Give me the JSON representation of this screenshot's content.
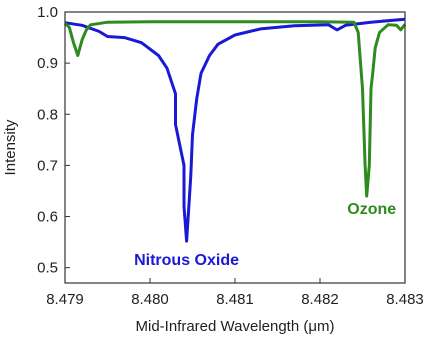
{
  "chart_data": {
    "type": "line",
    "xlabel": "Mid-Infrared Wavelength (μm)",
    "ylabel": "Intensity",
    "xlim": [
      8.479,
      8.483
    ],
    "ylim": [
      0.47,
      1.0
    ],
    "xticks": [
      "8.479",
      "8.480",
      "8.481",
      "8.482",
      "8.483"
    ],
    "yticks": [
      "0.5",
      "0.6",
      "0.7",
      "0.8",
      "0.9",
      "1.0"
    ],
    "grid": false,
    "series": [
      {
        "name": "Nitrous Oxide",
        "color": "#1a1ad6",
        "label_position": "below-center",
        "points": [
          [
            8.479,
            0.979
          ],
          [
            8.4792,
            0.974
          ],
          [
            8.4794,
            0.962
          ],
          [
            8.4795,
            0.952
          ],
          [
            8.4797,
            0.95
          ],
          [
            8.4799,
            0.94
          ],
          [
            8.4801,
            0.915
          ],
          [
            8.4802,
            0.89
          ],
          [
            8.4803,
            0.84
          ],
          [
            8.4803,
            0.78
          ],
          [
            8.4804,
            0.7
          ],
          [
            8.4804,
            0.62
          ],
          [
            8.48043,
            0.552
          ],
          [
            8.48045,
            0.6
          ],
          [
            8.48048,
            0.68
          ],
          [
            8.4805,
            0.76
          ],
          [
            8.48055,
            0.83
          ],
          [
            8.4806,
            0.88
          ],
          [
            8.4807,
            0.915
          ],
          [
            8.4808,
            0.937
          ],
          [
            8.481,
            0.955
          ],
          [
            8.4813,
            0.967
          ],
          [
            8.4817,
            0.973
          ],
          [
            8.4821,
            0.975
          ],
          [
            8.4822,
            0.965
          ],
          [
            8.4823,
            0.974
          ],
          [
            8.4826,
            0.98
          ],
          [
            8.483,
            0.986
          ]
        ]
      },
      {
        "name": "Ozone",
        "color": "#2e8b1e",
        "label_position": "right",
        "points": [
          [
            8.479,
            0.978
          ],
          [
            8.47905,
            0.97
          ],
          [
            8.4791,
            0.94
          ],
          [
            8.47915,
            0.915
          ],
          [
            8.4792,
            0.945
          ],
          [
            8.47925,
            0.965
          ],
          [
            8.4793,
            0.975
          ],
          [
            8.4795,
            0.98
          ],
          [
            8.48,
            0.981
          ],
          [
            8.481,
            0.981
          ],
          [
            8.482,
            0.981
          ],
          [
            8.4824,
            0.98
          ],
          [
            8.48245,
            0.96
          ],
          [
            8.4825,
            0.85
          ],
          [
            8.48253,
            0.7
          ],
          [
            8.48255,
            0.64
          ],
          [
            8.48258,
            0.7
          ],
          [
            8.4826,
            0.85
          ],
          [
            8.48262,
            0.88
          ],
          [
            8.48265,
            0.93
          ],
          [
            8.4827,
            0.96
          ],
          [
            8.4828,
            0.975
          ],
          [
            8.4829,
            0.974
          ],
          [
            8.48295,
            0.965
          ],
          [
            8.483,
            0.976
          ]
        ]
      }
    ]
  }
}
